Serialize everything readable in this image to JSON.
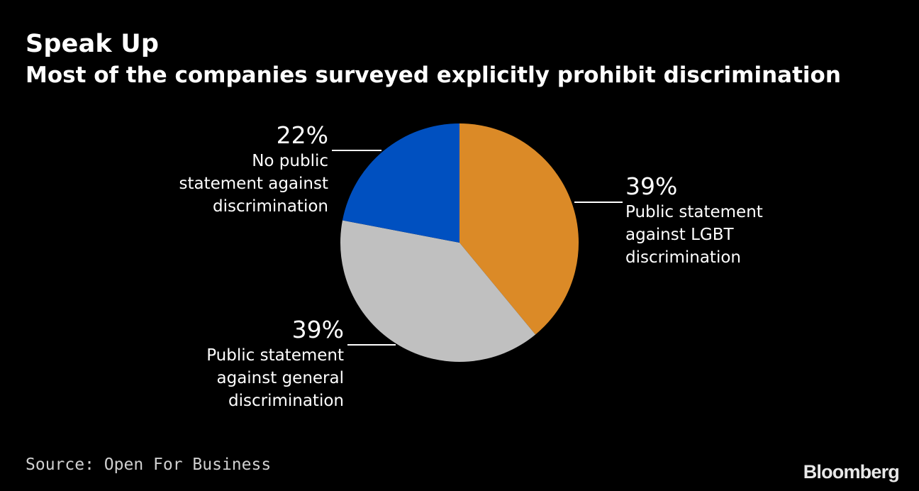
{
  "title": "Speak Up",
  "subtitle": "Most of the companies surveyed explicitly prohibit discrimination",
  "source": "Source: Open For Business",
  "brand": "Bloomberg",
  "chart_data": {
    "type": "pie",
    "start_angle_deg": 0,
    "direction": "clockwise",
    "slices": [
      {
        "label": "Public statement against LGBT discrimination",
        "value": 39,
        "value_label": "39%",
        "color": "#db8a27"
      },
      {
        "label": "Public statement against general discrimination",
        "value": 39,
        "value_label": "39%",
        "color": "#c0c0c0"
      },
      {
        "label": "No public statement against discrimination",
        "value": 22,
        "value_label": "22%",
        "color": "#0050c0"
      }
    ]
  },
  "labels": [
    {
      "pct": "39%",
      "desc": "Public statement\nagainst LGBT\ndiscrimination"
    },
    {
      "pct": "39%",
      "desc": "Public statement\nagainst general\ndiscrimination"
    },
    {
      "pct": "22%",
      "desc": "No public\nstatement against\ndiscrimination"
    }
  ]
}
